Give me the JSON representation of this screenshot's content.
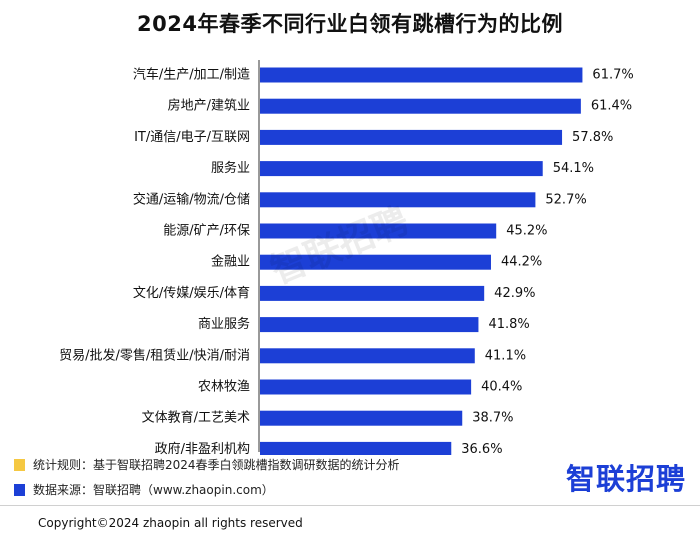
{
  "chart_data": {
    "type": "bar",
    "orientation": "horizontal",
    "title": "2024年春季不同行业白领有跳槽行为的比例",
    "categories": [
      "汽车/生产/加工/制造",
      "房地产/建筑业",
      "IT/通信/电子/互联网",
      "服务业",
      "交通/运输/物流/仓储",
      "能源/矿产/环保",
      "金融业",
      "文化/传媒/娱乐/体育",
      "商业服务",
      "贸易/批发/零售/租赁业/快消/耐消",
      "农林牧渔",
      "文体教育/工艺美术",
      "政府/非盈利机构"
    ],
    "values": [
      61.7,
      61.4,
      57.8,
      54.1,
      52.7,
      45.2,
      44.2,
      42.9,
      41.8,
      41.1,
      40.4,
      38.7,
      36.6
    ],
    "labels": [
      "61.7%",
      "61.4%",
      "57.8%",
      "54.1%",
      "52.7%",
      "45.2%",
      "44.2%",
      "42.9%",
      "41.8%",
      "41.1%",
      "40.4%",
      "38.7%",
      "36.6%"
    ],
    "unit": "%",
    "xlim": [
      0,
      62
    ],
    "xlabel": "",
    "ylabel": "",
    "grid": false,
    "bar_color": "#1c3fd6"
  },
  "notes": {
    "rule": "统计规则：基于智联招聘2024春季白领跳槽指数调研数据的统计分析",
    "rule_color": "#f5c842",
    "source": "数据来源：智联招聘（www.zhaopin.com）",
    "source_color": "#1c3fd6"
  },
  "brand": {
    "logo_text": "智联招聘",
    "watermark_text": "智联招聘"
  },
  "footer": {
    "copyright": "Copyright©2024 zhaopin all rights reserved"
  }
}
